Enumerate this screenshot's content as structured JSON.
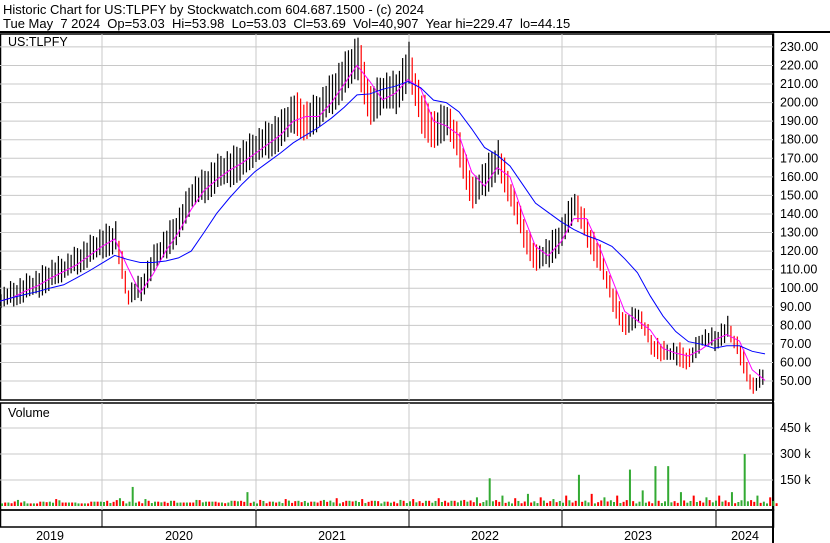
{
  "header": {
    "title": "Historic Chart for US:TLPFY by Stockwatch.com 604.687.1500 - (c) 2024",
    "quote": "Tue May  7 2024  Op=53.03  Hi=53.98  Lo=53.03  Cl=53.69  Vol=40,907  Year hi=229.47  lo=44.15"
  },
  "colors": {
    "price_up": "#000000",
    "price_down": "#ff0000",
    "ma_short": "#ff00ff",
    "ma_long": "#0000ff",
    "vol_up": "#33aa33",
    "vol_down": "#ff0000",
    "grid": "#c8c8c8"
  },
  "chart_data": [
    {
      "type": "line",
      "title": "US:TLPFY",
      "series_style": "ohlc-bars with short and long moving averages",
      "ylim": [
        40,
        235
      ],
      "yticks": [
        "230.00",
        "220.00",
        "210.00",
        "200.00",
        "190.00",
        "180.00",
        "170.00",
        "160.00",
        "150.00",
        "140.00",
        "130.00",
        "120.00",
        "110.00",
        "100.00",
        "90.00",
        "80.00",
        "70.00",
        "60.00",
        "50.00"
      ],
      "x_labels": [
        "2019",
        "2020",
        "2021",
        "2022",
        "2023",
        "2024"
      ],
      "x": [
        "2019-05",
        "2019-06",
        "2019-07",
        "2019-08",
        "2019-09",
        "2019-10",
        "2019-11",
        "2019-12",
        "2020-01",
        "2020-02",
        "2020-03",
        "2020-04",
        "2020-05",
        "2020-06",
        "2020-07",
        "2020-08",
        "2020-09",
        "2020-10",
        "2020-11",
        "2020-12",
        "2021-01",
        "2021-02",
        "2021-03",
        "2021-04",
        "2021-05",
        "2021-06",
        "2021-07",
        "2021-08",
        "2021-09",
        "2021-10",
        "2021-11",
        "2021-12",
        "2022-01",
        "2022-02",
        "2022-03",
        "2022-04",
        "2022-05",
        "2022-06",
        "2022-07",
        "2022-08",
        "2022-09",
        "2022-10",
        "2022-11",
        "2022-12",
        "2023-01",
        "2023-02",
        "2023-03",
        "2023-04",
        "2023-05",
        "2023-06",
        "2023-07",
        "2023-08",
        "2023-09",
        "2023-10",
        "2023-11",
        "2023-12",
        "2024-01",
        "2024-02",
        "2024-03",
        "2024-04",
        "2024-05"
      ],
      "close": [
        93,
        97,
        100,
        103,
        108,
        110,
        115,
        120,
        125,
        128,
        95,
        100,
        115,
        125,
        135,
        150,
        155,
        162,
        165,
        170,
        175,
        180,
        185,
        195,
        190,
        195,
        205,
        215,
        225,
        198,
        205,
        205,
        220,
        195,
        185,
        190,
        175,
        150,
        160,
        170,
        150,
        130,
        115,
        120,
        130,
        145,
        130,
        115,
        95,
        80,
        85,
        70,
        65,
        65,
        62,
        72,
        72,
        78,
        65,
        47,
        53.69
      ]
    },
    {
      "type": "bar",
      "title": "Volume",
      "yticks": [
        "450 k",
        "300 k",
        "150 k"
      ],
      "ylim": [
        0,
        600000
      ],
      "x_labels": [
        "2019",
        "2020",
        "2021",
        "2022",
        "2023",
        "2024"
      ],
      "values": [
        20000,
        35000,
        15000,
        25000,
        40000,
        20000,
        15000,
        25000,
        30000,
        45000,
        110000,
        40000,
        25000,
        30000,
        20000,
        35000,
        25000,
        20000,
        30000,
        80000,
        35000,
        25000,
        40000,
        30000,
        25000,
        35000,
        45000,
        30000,
        40000,
        30000,
        25000,
        35000,
        40000,
        30000,
        45000,
        30000,
        35000,
        50000,
        160000,
        60000,
        45000,
        70000,
        50000,
        40000,
        60000,
        180000,
        70000,
        50000,
        60000,
        210000,
        90000,
        230000,
        230000,
        80000,
        60000,
        50000,
        60000,
        80000,
        300000,
        60000,
        50000
      ]
    }
  ]
}
